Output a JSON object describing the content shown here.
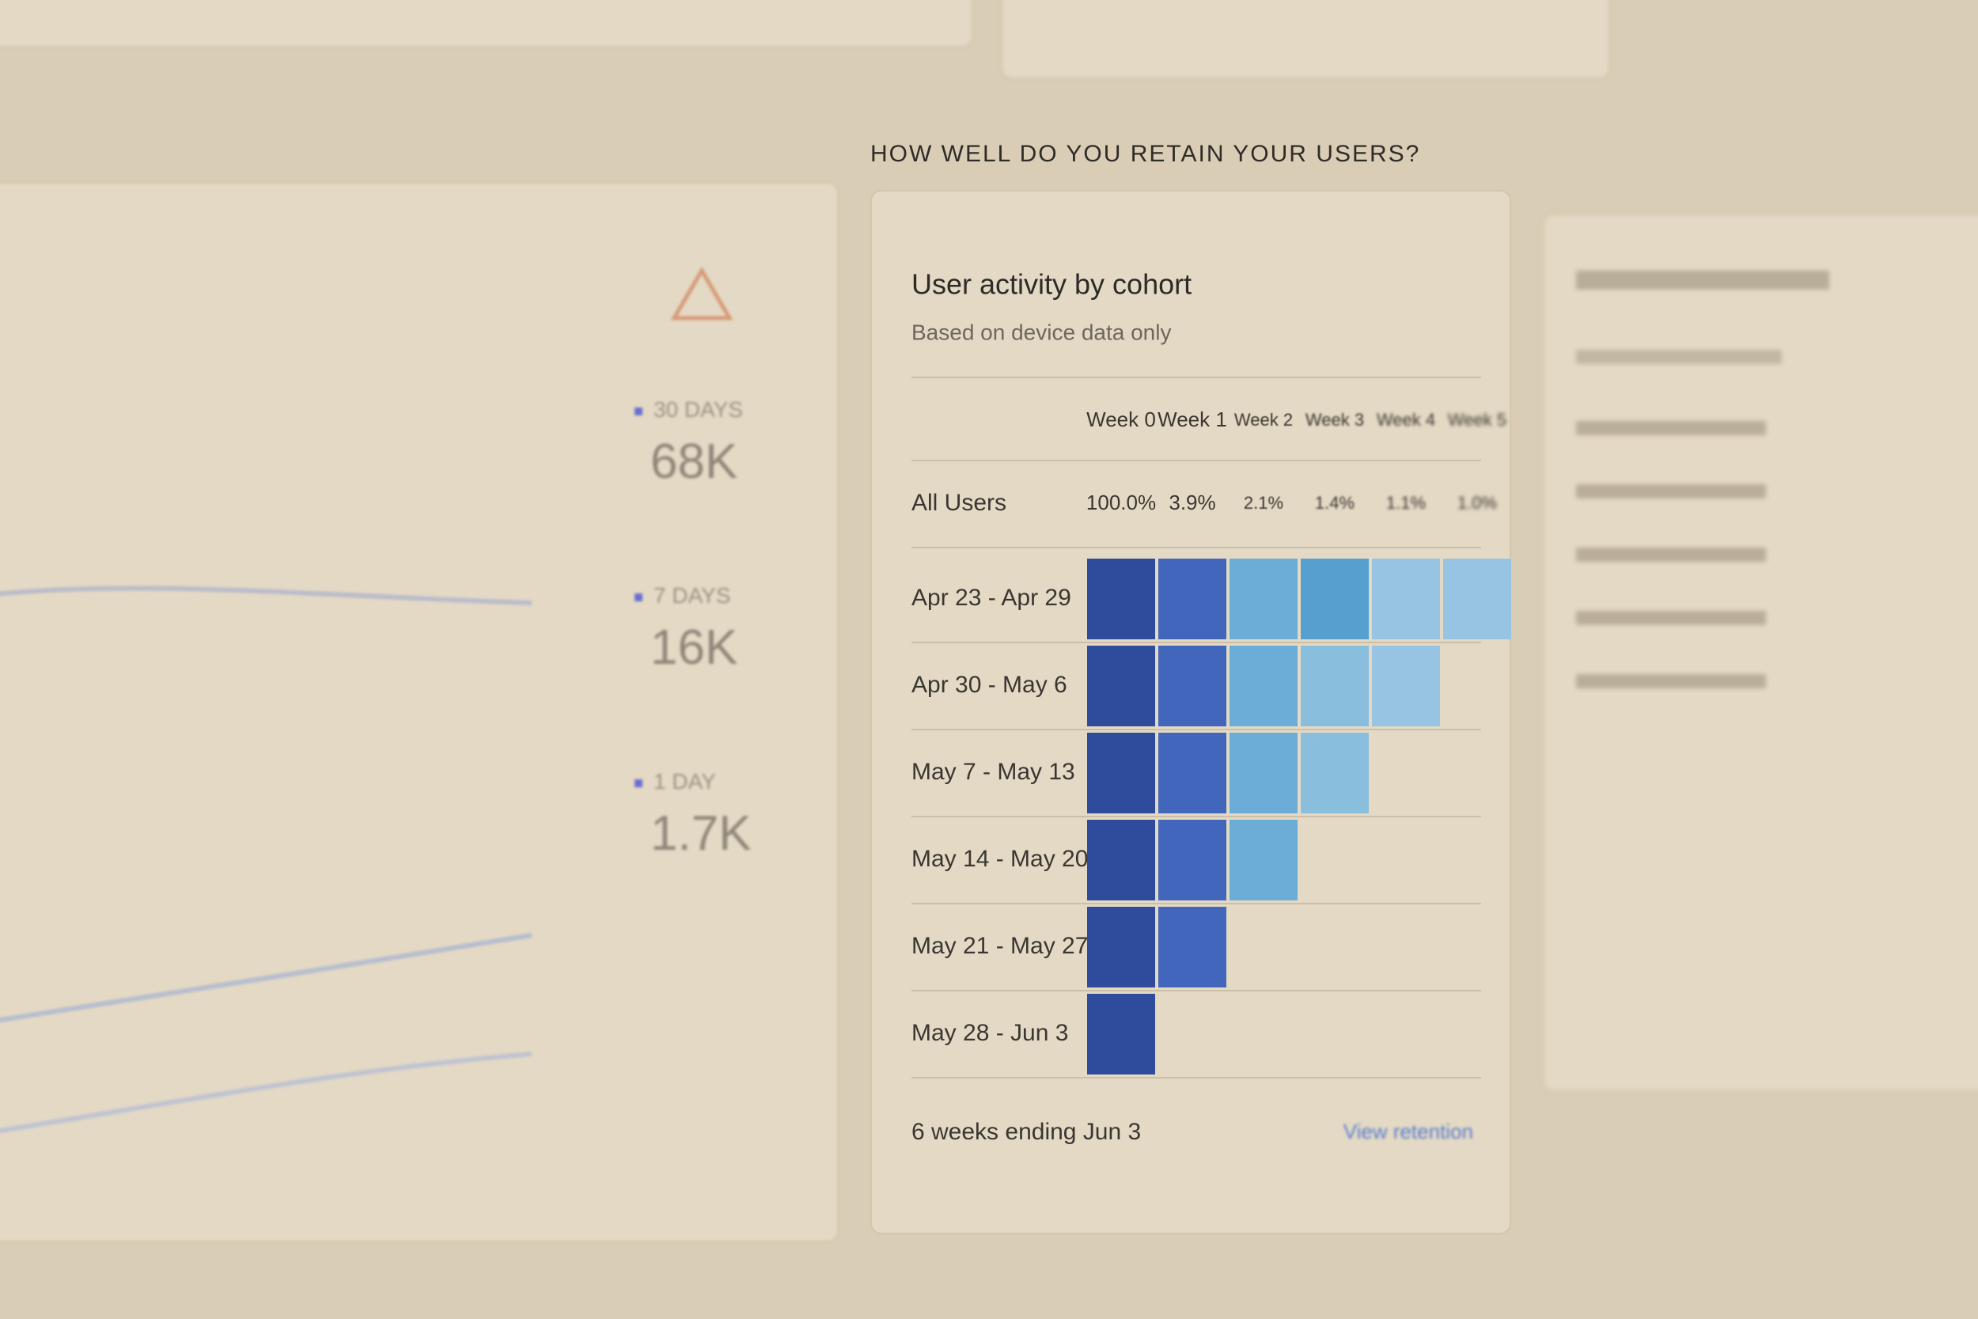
{
  "section_heading": "HOW WELL DO YOU RETAIN YOUR USERS?",
  "active_users": {
    "metrics": [
      {
        "label": "30 DAYS",
        "value": "68K"
      },
      {
        "label": "7 DAYS",
        "value": "16K"
      },
      {
        "label": "1 DAY",
        "value": "1.7K"
      }
    ]
  },
  "cohort": {
    "title": "User activity by cohort",
    "subtitle": "Based on device data only",
    "columns": [
      "Week 0",
      "Week 1",
      "Week 2",
      "Week 3",
      "Week 4",
      "Week 5"
    ],
    "all_users": {
      "label": "All Users",
      "values": [
        "100.0%",
        "3.9%",
        "2.1%",
        "1.4%",
        "1.1%",
        "1.0%"
      ]
    },
    "rows": [
      {
        "label": "Apr 23 - Apr 29",
        "retention": [
          100,
          4.2,
          2.3,
          2.6,
          1.2,
          1.0
        ]
      },
      {
        "label": "Apr 30 - May 6",
        "retention": [
          100,
          4.0,
          2.2,
          1.3,
          1.1
        ]
      },
      {
        "label": "May 7 - May 13",
        "retention": [
          100,
          3.8,
          2.1,
          1.4
        ]
      },
      {
        "label": "May 14 - May 20",
        "retention": [
          100,
          3.7,
          2.0
        ]
      },
      {
        "label": "May 21 - May 27",
        "retention": [
          100,
          3.1
        ]
      },
      {
        "label": "May 28 - Jun 3",
        "retention": [
          100
        ]
      }
    ],
    "footer": "6 weeks ending Jun 3",
    "link": "View retention"
  }
}
